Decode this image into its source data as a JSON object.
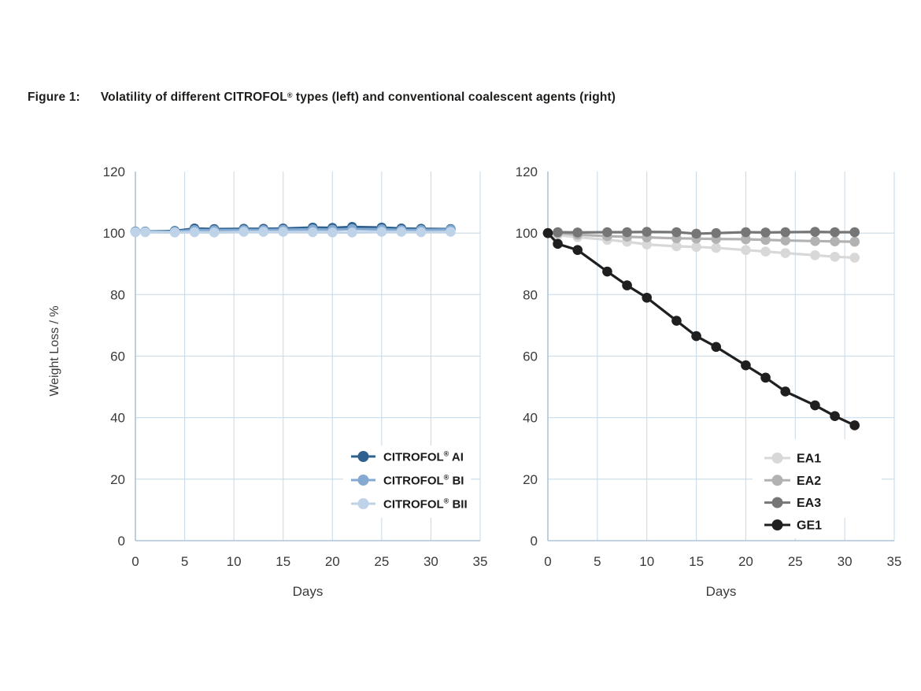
{
  "figure": {
    "label": "Figure 1:",
    "title_pre": "Volatility of different CITROFOL",
    "title_sup": "®",
    "title_post": " types (left) and conventional coalescent agents (right)"
  },
  "axes": {
    "x_label": "Days",
    "y_label": "Weight Loss / %",
    "x_ticks": [
      0,
      5,
      10,
      15,
      20,
      25,
      30,
      35
    ],
    "y_ticks": [
      0,
      20,
      40,
      60,
      80,
      100,
      120
    ]
  },
  "colors": {
    "background": "#ffffff",
    "grid": "#c9dbe9",
    "axis": "#aec3d5",
    "tick_label": "#3a3a3a",
    "title": "#1d1d1b",
    "legend_text": "#1a1a1a",
    "legend_bg": "#ffffff"
  },
  "chart_data": [
    {
      "type": "line",
      "title": "Volatility of different CITROFOL types",
      "xlabel": "Days",
      "ylabel": "Weight Loss / %",
      "xlim": [
        0,
        35
      ],
      "ylim": [
        0,
        120
      ],
      "grid": true,
      "legend_position": "inside-bottom-right",
      "x": [
        0,
        1,
        4,
        6,
        8,
        11,
        13,
        15,
        18,
        20,
        22,
        25,
        27,
        29,
        32
      ],
      "series": [
        {
          "name": "CITROFOL® AI",
          "label": {
            "pre": "CITROFOL",
            "sup": "®",
            "post": " AI"
          },
          "color": "#2f618e",
          "values": [
            100.5,
            100.5,
            100.7,
            101.5,
            101.3,
            101.4,
            101.4,
            101.5,
            101.8,
            101.7,
            102.0,
            101.8,
            101.5,
            101.4,
            101.3
          ]
        },
        {
          "name": "CITROFOL® BI",
          "label": {
            "pre": "CITROFOL",
            "sup": "®",
            "post": " BI"
          },
          "color": "#84aad2",
          "values": [
            100.4,
            100.4,
            100.5,
            101.0,
            100.9,
            101.0,
            101.0,
            101.1,
            101.2,
            101.1,
            101.3,
            101.2,
            101.0,
            101.0,
            101.1
          ]
        },
        {
          "name": "CITROFOL® BII",
          "label": {
            "pre": "CITROFOL",
            "sup": "®",
            "post": " BII"
          },
          "color": "#bfd3e8",
          "values": [
            100.3,
            100.3,
            100.2,
            100.3,
            100.2,
            100.4,
            100.4,
            100.4,
            100.3,
            100.2,
            100.2,
            100.4,
            100.4,
            100.3,
            100.4
          ]
        }
      ]
    },
    {
      "type": "line",
      "title": "Volatility of conventional coalescent agents",
      "xlabel": "Days",
      "ylabel": "Weight Loss / %",
      "xlim": [
        0,
        35
      ],
      "ylim": [
        0,
        120
      ],
      "grid": true,
      "legend_position": "inside-bottom-right",
      "x": [
        0,
        1,
        3,
        6,
        8,
        10,
        13,
        15,
        17,
        20,
        22,
        24,
        27,
        29,
        31
      ],
      "series": [
        {
          "name": "EA1",
          "label": {
            "pre": "EA1",
            "sup": "",
            "post": ""
          },
          "color": "#d8d8d8",
          "values": [
            100,
            99.3,
            98.7,
            97.8,
            97.2,
            96.3,
            95.7,
            95.5,
            95.2,
            94.5,
            94.0,
            93.5,
            92.8,
            92.3,
            92.0
          ]
        },
        {
          "name": "EA2",
          "label": {
            "pre": "EA2",
            "sup": "",
            "post": ""
          },
          "color": "#b2b2b2",
          "values": [
            100,
            100,
            99.5,
            99.0,
            98.8,
            98.6,
            98.3,
            98.2,
            98.1,
            98.0,
            97.8,
            97.6,
            97.4,
            97.3,
            97.2
          ]
        },
        {
          "name": "EA3",
          "label": {
            "pre": "EA3",
            "sup": "",
            "post": ""
          },
          "color": "#767676",
          "values": [
            100,
            100.3,
            100.2,
            100.3,
            100.3,
            100.4,
            100.3,
            99.8,
            100.0,
            100.3,
            100.2,
            100.3,
            100.4,
            100.3,
            100.3
          ]
        },
        {
          "name": "GE1",
          "label": {
            "pre": "GE1",
            "sup": "",
            "post": ""
          },
          "color": "#1f1f1f",
          "values": [
            100,
            96.5,
            94.5,
            87.5,
            83.0,
            79.0,
            71.5,
            66.5,
            63.0,
            57.0,
            53.0,
            48.5,
            44.0,
            40.5,
            37.5
          ]
        }
      ]
    }
  ]
}
